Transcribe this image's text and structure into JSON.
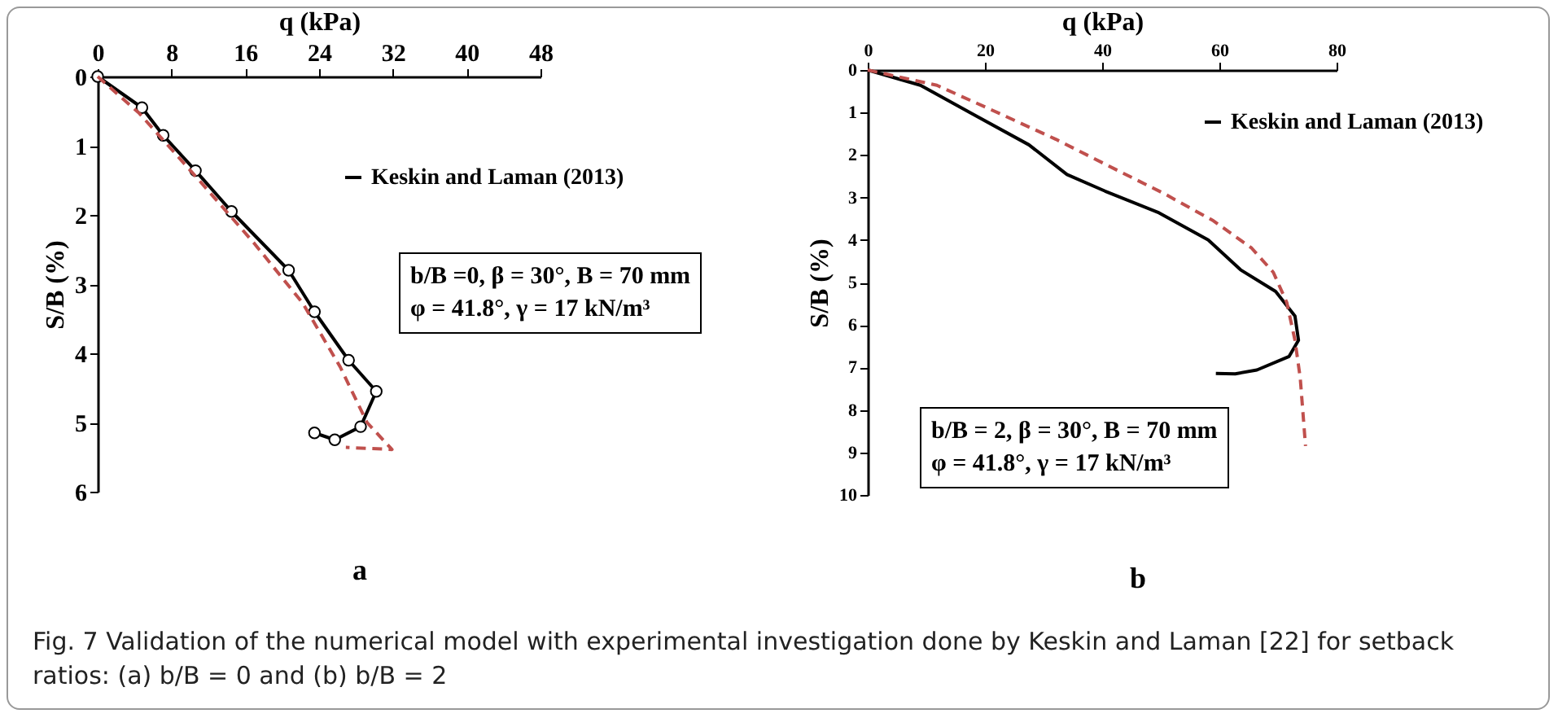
{
  "chart_data": [
    {
      "type": "line",
      "xlabel": "q (kPa)",
      "ylabel": "S/B (%)",
      "xlim": [
        0,
        48
      ],
      "xticks": [
        0,
        8,
        16,
        24,
        32,
        40,
        48
      ],
      "ylim": [
        6,
        0
      ],
      "yticks": [
        0,
        1,
        2,
        3,
        4,
        5,
        6
      ],
      "grid": false,
      "legend": "right",
      "annotations": [
        "b/B =0, β = 30°, B = 70 mm",
        "φ = 41.8°, γ = 17 kN/m³",
        "a",
        "Fig. 7 Validation of the numerical model with experimental investigation done by Keskin and Laman [22] for setback ratios: (a) b/B = 0 and (b) b/B = 2"
      ],
      "series": [
        {
          "name": "Keskin and Laman (2013)",
          "color": "#000000",
          "marker": "circle",
          "line_style": "solid",
          "x": [
            0,
            4.8,
            7.1,
            10.6,
            14.5,
            20.7,
            23.5,
            27.2,
            30.2,
            28.5,
            25.7,
            23.5
          ],
          "values": [
            0,
            0.45,
            0.85,
            1.36,
            1.95,
            2.8,
            3.4,
            4.1,
            4.55,
            5.06,
            5.25,
            5.15
          ]
        },
        {
          "color": "#c0504d",
          "marker": "none",
          "line_style": "dashed",
          "x": [
            0,
            4.5,
            11,
            16.9,
            22.2,
            26.3,
            29.2,
            31.9,
            26.9
          ],
          "values": [
            0,
            0.53,
            1.5,
            2.4,
            3.27,
            4.2,
            5.0,
            5.39,
            5.36
          ]
        }
      ]
    },
    {
      "type": "line",
      "xlabel": "q (kPa)",
      "ylabel": "S/B (%)",
      "xlim": [
        0,
        80
      ],
      "xticks": [
        0,
        20,
        40,
        60,
        80
      ],
      "ylim": [
        10,
        0
      ],
      "yticks": [
        0,
        1,
        2,
        3,
        4,
        5,
        6,
        7,
        8,
        9,
        10
      ],
      "grid": false,
      "legend": "top right",
      "annotations": [
        "b/B = 2, β = 30°, B = 70 mm",
        "φ = 41.8°, γ = 17 kN/m³",
        "b"
      ],
      "series": [
        {
          "name": "Keskin and Laman (2013)",
          "color": "#000000",
          "marker": "none",
          "line_style": "solid",
          "x": [
            0,
            9,
            18.2,
            27.5,
            34,
            40.5,
            49.7,
            58.1,
            63.6,
            69.6,
            72.9,
            73.5,
            71.9,
            66.4,
            62.7,
            59.4
          ],
          "values": [
            0,
            0.36,
            1.06,
            1.76,
            2.46,
            2.85,
            3.36,
            4.0,
            4.7,
            5.21,
            5.79,
            6.36,
            6.74,
            7.06,
            7.15,
            7.14
          ]
        },
        {
          "color": "#c0504d",
          "marker": "none",
          "line_style": "dashed",
          "x": [
            0,
            11.8,
            21,
            32.1,
            42.3,
            50.6,
            59,
            65.5,
            69.2,
            71.5,
            72.9,
            73.8,
            74.7
          ],
          "values": [
            0,
            0.36,
            0.93,
            1.63,
            2.34,
            2.91,
            3.55,
            4.19,
            4.76,
            5.47,
            6.36,
            7.25,
            8.85
          ]
        }
      ]
    }
  ]
}
